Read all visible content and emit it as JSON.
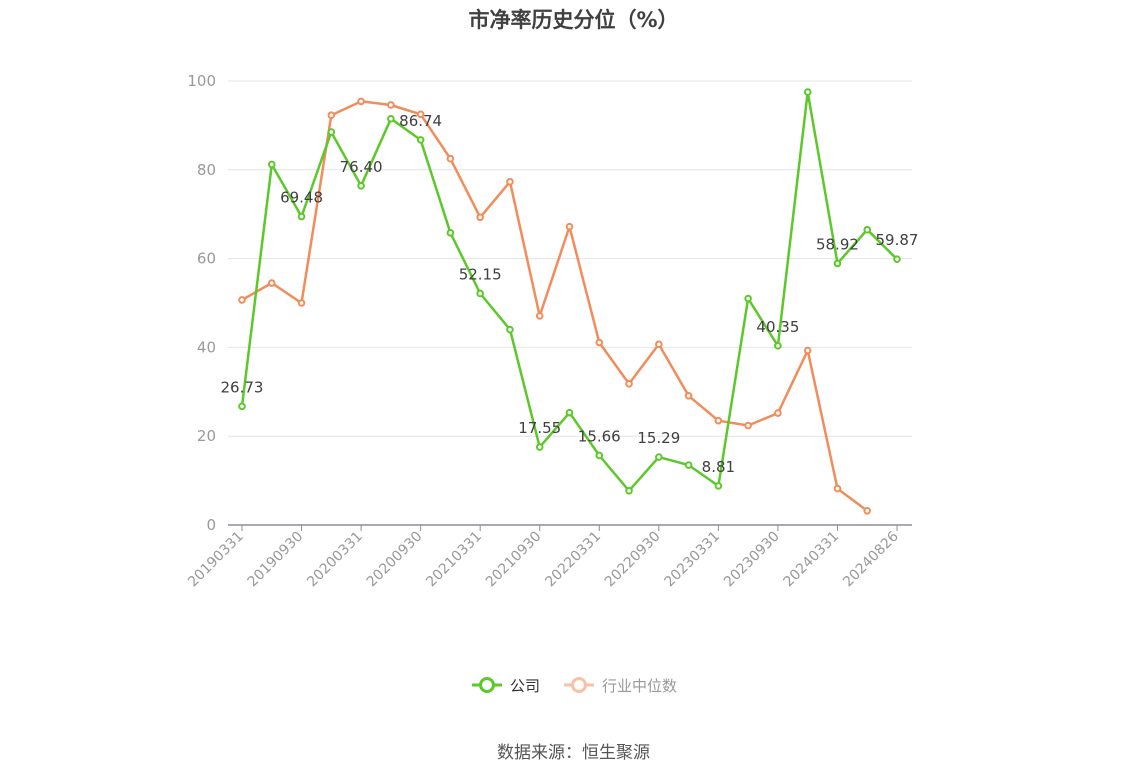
{
  "chart_data": {
    "type": "line",
    "title": "市净率历史分位（%）",
    "x_ticks": [
      "20190331",
      "20190930",
      "20200331",
      "20200930",
      "20210331",
      "20210930",
      "20220331",
      "20220930",
      "20230331",
      "20230930",
      "20240331",
      "20240826"
    ],
    "ylim": [
      0,
      100
    ],
    "y_ticks": [
      0,
      20,
      40,
      60,
      80,
      100
    ],
    "grid": true,
    "legend_position": "bottom",
    "series": [
      {
        "name": "公司",
        "color": "#5cc82a",
        "values": [
          26.73,
          81.2,
          69.48,
          88.5,
          76.4,
          91.5,
          86.74,
          65.8,
          52.15,
          44.0,
          17.55,
          25.3,
          15.66,
          7.7,
          15.29,
          13.5,
          8.81,
          51.0,
          40.35,
          97.5,
          58.92,
          66.5,
          59.87
        ],
        "labels": [
          "26.73",
          null,
          "69.48",
          null,
          "76.40",
          null,
          "86.74",
          null,
          "52.15",
          null,
          "17.55",
          null,
          "15.66",
          null,
          "15.29",
          null,
          "8.81",
          null,
          "40.35",
          null,
          "58.92",
          null,
          "59.87"
        ]
      },
      {
        "name": "行业中位数",
        "color": "#f28c5a",
        "values": [
          50.7,
          54.5,
          50.0,
          92.3,
          95.4,
          94.6,
          92.5,
          82.5,
          69.3,
          77.3,
          47.1,
          67.2,
          41.1,
          31.8,
          40.7,
          29.1,
          23.5,
          22.4,
          25.2,
          39.3,
          8.2,
          3.2,
          null
        ]
      }
    ]
  },
  "source_text": "数据来源：恒生聚源"
}
